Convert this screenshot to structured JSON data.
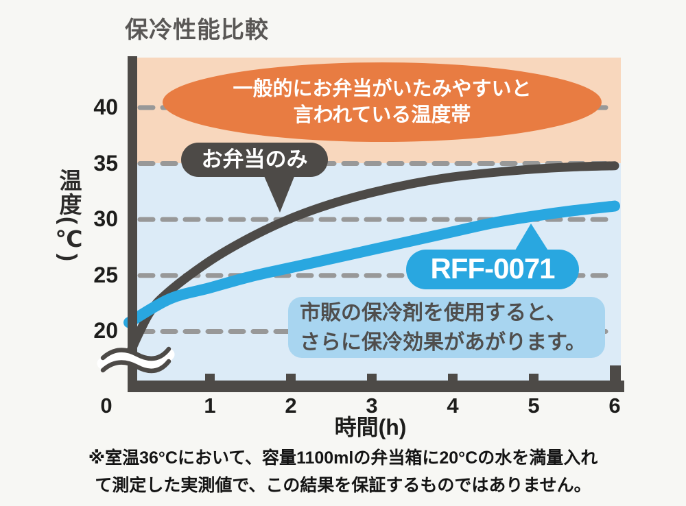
{
  "title": "保冷性能比較",
  "colors": {
    "page_bg": "#f7f7f4",
    "danger_band": "#f8d7bd",
    "normal_band": "#dcebf7",
    "axis": "#4d4a47",
    "gridline": "#989898",
    "bento_line": "#4d4a47",
    "rff_line": "#29a7e0",
    "ellipse_bg": "#e87c42",
    "bubble_bg": "#4d4a47",
    "pill_bg": "#29a7e0",
    "info_bg": "#a8d5f0"
  },
  "chart_data": {
    "type": "line",
    "title": "保冷性能比較",
    "xlabel": "時間(h)",
    "ylabel": "温度(℃)",
    "xticks": [
      "0",
      "1",
      "2",
      "3",
      "4",
      "5",
      "6"
    ],
    "yticks": [
      "40",
      "35",
      "30",
      "25",
      "20"
    ],
    "ytick_values": [
      40,
      35,
      30,
      25,
      20
    ],
    "xlim": [
      0,
      6
    ],
    "ylim_visible": [
      15.5,
      44.4
    ],
    "axis_break": true,
    "grid": "dashed horizontal",
    "legend_position": "inline callouts",
    "bands": [
      {
        "name": "danger-zone",
        "from": 35,
        "to": 44.4
      },
      {
        "name": "normal-zone",
        "from": 15.5,
        "to": 35
      }
    ],
    "series": [
      {
        "name": "お弁当のみ",
        "points": [
          [
            0,
            17.9
          ],
          [
            0.25,
            21.6
          ],
          [
            0.5,
            23.6
          ],
          [
            1,
            26.3
          ],
          [
            1.5,
            28.4
          ],
          [
            2,
            30.1
          ],
          [
            2.5,
            31.4
          ],
          [
            3,
            32.4
          ],
          [
            3.5,
            33.2
          ],
          [
            4,
            33.8
          ],
          [
            4.5,
            34.2
          ],
          [
            5,
            34.5
          ],
          [
            5.5,
            34.7
          ],
          [
            6,
            34.8
          ]
        ]
      },
      {
        "name": "RFF-0071",
        "points": [
          [
            0,
            20.8
          ],
          [
            0.5,
            22.9
          ],
          [
            1,
            23.9
          ],
          [
            1.5,
            24.9
          ],
          [
            2,
            25.7
          ],
          [
            2.5,
            26.5
          ],
          [
            3,
            27.3
          ],
          [
            3.5,
            28.1
          ],
          [
            4,
            28.9
          ],
          [
            4.5,
            29.7
          ],
          [
            5,
            30.3
          ],
          [
            5.5,
            30.8
          ],
          [
            6,
            31.2
          ]
        ]
      }
    ],
    "annotations": {
      "danger_ellipse_line1": "一般的にお弁当がいたみやすいと",
      "danger_ellipse_line2": "言われている温度帯",
      "bento_label": "お弁当のみ",
      "rff_label": "RFF-0071",
      "info_line1": "市販の保冷剤を使用すると、",
      "info_line2": "さらに保冷効果があがります。"
    }
  },
  "footnote": {
    "line1": "※室温36°Cにおいて、容量1100mlの弁当箱に20°Cの水を満量入れ",
    "line2": "て測定した実測値で、この結果を保証するものではありません。"
  }
}
